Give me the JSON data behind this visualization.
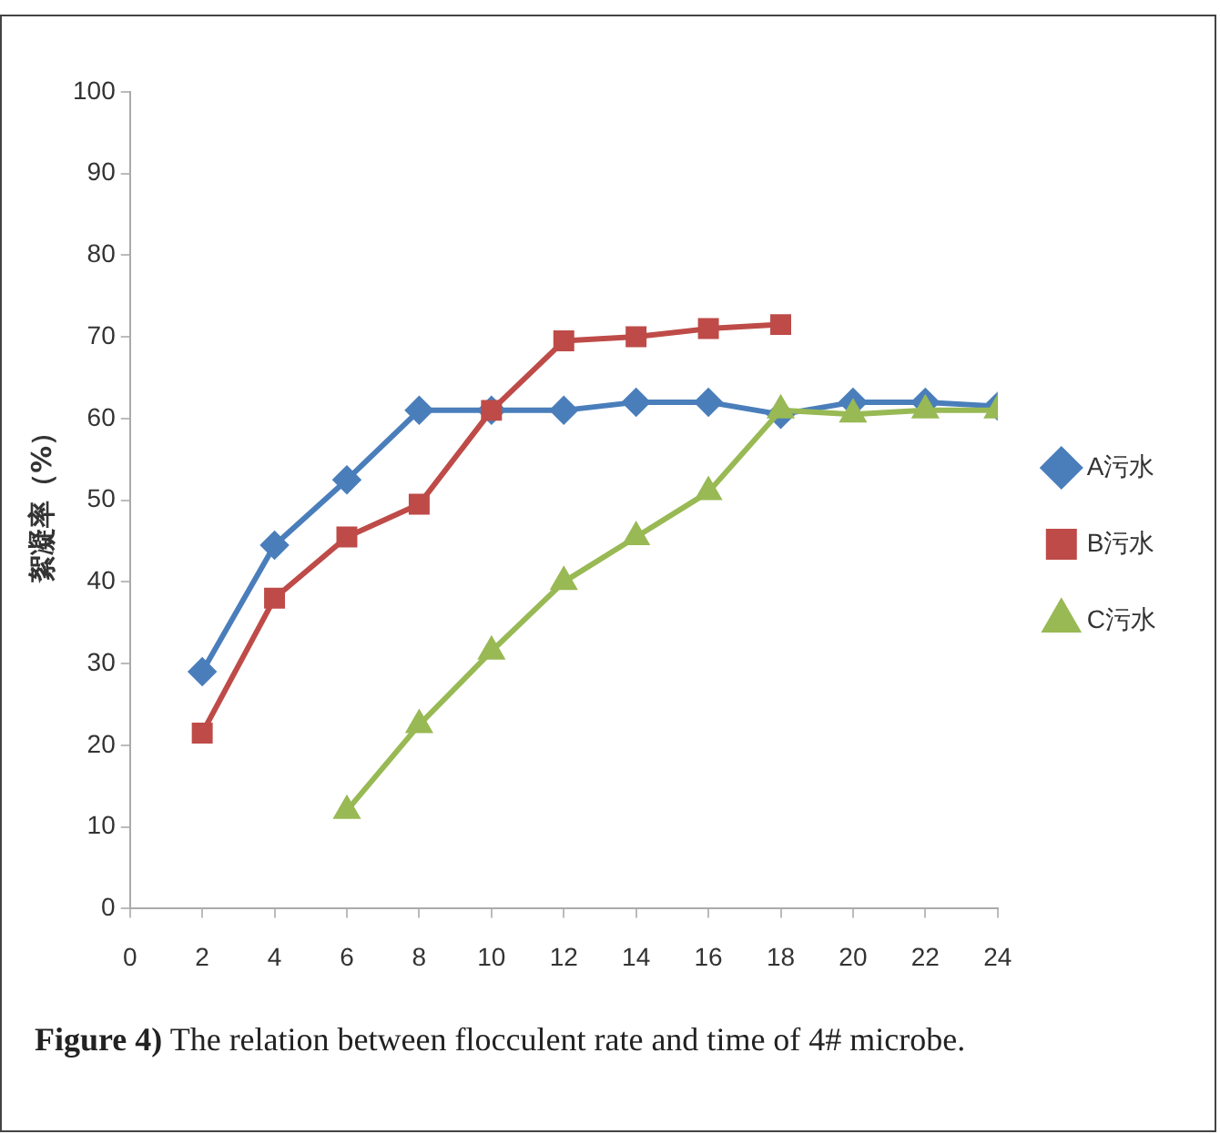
{
  "chart_data": {
    "type": "line",
    "ylabel": "絮凝率（%）",
    "x": [
      2,
      4,
      6,
      8,
      10,
      12,
      14,
      16,
      18,
      20,
      22,
      24
    ],
    "series": [
      {
        "name": "A污水",
        "color": "#4a7ebb",
        "marker": "diamond",
        "values": [
          29,
          44.5,
          52.5,
          61,
          61,
          61,
          62,
          62,
          60.5,
          62,
          62,
          61.5
        ]
      },
      {
        "name": "B污水",
        "color": "#be4b48",
        "marker": "square",
        "values": [
          21.5,
          38,
          45.5,
          49.5,
          61,
          69.5,
          70,
          71,
          71.5,
          null,
          null,
          null
        ]
      },
      {
        "name": "C污水",
        "color": "#98b954",
        "marker": "triangle",
        "values": [
          null,
          null,
          12,
          22.5,
          31.5,
          40,
          45.5,
          51,
          61,
          60.5,
          61,
          61
        ]
      }
    ],
    "xlim": [
      0,
      24
    ],
    "xticks": [
      0,
      2,
      4,
      6,
      8,
      10,
      12,
      14,
      16,
      18,
      20,
      22,
      24
    ],
    "ylim": [
      0,
      100
    ],
    "yticks": [
      0,
      10,
      20,
      30,
      40,
      50,
      60,
      70,
      80,
      90,
      100
    ],
    "grid": false,
    "legend": "right",
    "line_style": "solid",
    "annotations": [
      "Figure 4) The relation between flocculent rate and time of 4# microbe."
    ]
  }
}
